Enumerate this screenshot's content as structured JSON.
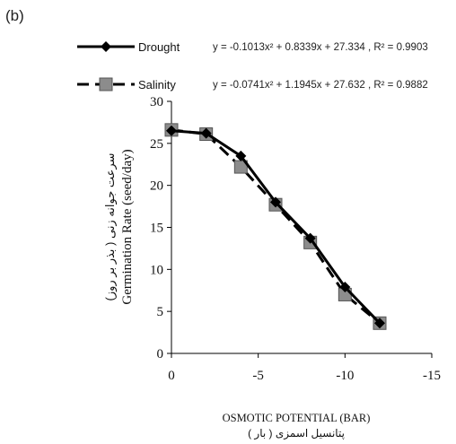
{
  "chart_data": {
    "type": "line",
    "panel_label": "(b)",
    "xlabel": "OSMOTIC POTENTIAL (BAR)",
    "xlabel_fa": "پتانسیل اسمزی ( بار )",
    "ylabel": "Germination Rate (seed/day)",
    "ylabel_fa": "سرعت جوانه زنی ( بذر بر روز)",
    "xlim": [
      0,
      -15
    ],
    "ylim": [
      0,
      30
    ],
    "x_ticks": [
      0,
      -5,
      -10,
      -15
    ],
    "x_tick_labels": [
      "0",
      "-5",
      "-10",
      "-15"
    ],
    "y_ticks": [
      0,
      5,
      10,
      15,
      20,
      25,
      30
    ],
    "y_tick_labels": [
      "0",
      "5",
      "10",
      "15",
      "20",
      "25",
      "30"
    ],
    "grid": false,
    "legend_position": "top",
    "x": [
      0,
      -2,
      -4,
      -6,
      -8,
      -10,
      -12
    ],
    "series": [
      {
        "name": "Drought",
        "values": [
          26.5,
          26.2,
          23.5,
          18.0,
          13.7,
          7.9,
          3.6
        ],
        "color": "#000000",
        "line_style": "solid",
        "marker": "diamond",
        "equation": "y = -0.1013x² + 0.8339x + 27.334 , R² = 0.9903"
      },
      {
        "name": "Salinity",
        "values": [
          26.6,
          26.1,
          22.2,
          17.7,
          13.2,
          7.0,
          3.6
        ],
        "color": "#000000",
        "marker_color": "#8c8c8c",
        "line_style": "dashed",
        "marker": "square",
        "equation": "y = -0.0741x² + 1.1945x + 27.632 , R² = 0.9882"
      }
    ]
  }
}
